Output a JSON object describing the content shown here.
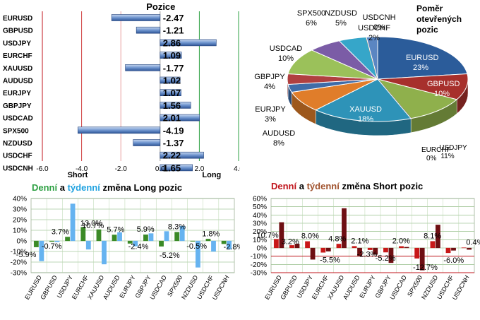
{
  "colors": {
    "green": "#2ea043",
    "blue": "#1fa2e0",
    "brown": "#a0522d",
    "red": "#c0141c",
    "bar_blue": "#4a78c0",
    "weekly_blue": "#66b3f0",
    "daily_green": "#3b8a26",
    "short_daily": "#c81818",
    "short_weekly": "#6e0f12"
  },
  "chart_data": [
    {
      "type": "bar",
      "orientation": "horizontal",
      "title": "Pozice",
      "categories": [
        "EURUSD",
        "GBPUSD",
        "USDJPY",
        "EURCHF",
        "XAUUSD",
        "AUDUSD",
        "EURJPY",
        "GBPJPY",
        "USDCAD",
        "SPX500",
        "NZDUSD",
        "USDCHF",
        "USDCNH"
      ],
      "values": [
        -2.47,
        -1.21,
        2.86,
        1.09,
        -1.77,
        1.02,
        1.07,
        1.56,
        2.01,
        -4.19,
        -1.37,
        2.22,
        1.65
      ],
      "value_labels": [
        "-2.47",
        "-1.21",
        "2.86",
        "1.09",
        "-1.77",
        "1.02",
        "1.07",
        "1.56",
        "2.01",
        "-4.19",
        "-1.37",
        "2.22",
        "1.65"
      ],
      "xlim": [
        -6.0,
        4.0
      ],
      "xticks": [
        "-6.0",
        "-4.0",
        "-2.0",
        "0.0",
        "2.0",
        "4.0"
      ],
      "xlabel_left": "Short",
      "xlabel_right": "Long",
      "grid": false
    },
    {
      "type": "pie",
      "title_lines": [
        "Poměr",
        "otevřených",
        "pozic"
      ],
      "slices": [
        {
          "label": "EURUSD",
          "value": 23,
          "text": "23%",
          "color": "#2b5c9a"
        },
        {
          "label": "GBPUSD",
          "value": 10,
          "text": "10%",
          "color": "#a7302c"
        },
        {
          "label": "USDJPY",
          "value": 11,
          "text": "11%",
          "color": "#8fb04c"
        },
        {
          "label": "EURCHF",
          "value": 0,
          "text": "0%",
          "color": "#6a4c93"
        },
        {
          "label": "XAUUSD",
          "value": 18,
          "text": "18%",
          "color": "#2e93b8"
        },
        {
          "label": "AUDUSD",
          "value": 8,
          "text": "8%",
          "color": "#e07d2a"
        },
        {
          "label": "EURJPY",
          "value": 3,
          "text": "3%",
          "color": "#3f6ca8"
        },
        {
          "label": "GBPJPY",
          "value": 4,
          "text": "4%",
          "color": "#b04040"
        },
        {
          "label": "USDCAD",
          "value": 10,
          "text": "10%",
          "color": "#9bc15a"
        },
        {
          "label": "SPX500",
          "value": 6,
          "text": "6%",
          "color": "#7b5ca6"
        },
        {
          "label": "NZDUSD",
          "value": 5,
          "text": "5%",
          "color": "#36a6c9"
        },
        {
          "label": "USDCNH",
          "value": 0,
          "text": "0%",
          "color": "#f08f3a"
        },
        {
          "label": "USDCHF",
          "value": 2,
          "text": "2%",
          "color": "#5b86c2"
        }
      ]
    },
    {
      "type": "bar",
      "title_parts": [
        "Denní",
        " a ",
        "týdenní",
        " změna Long pozic"
      ],
      "categories": [
        "EURUSD",
        "GBPUSD",
        "USDJPY",
        "EURCHF",
        "XAUUSD",
        "AUDUSD",
        "EURJPY",
        "GBPJPY",
        "USDCAD",
        "SPX500",
        "NZDUSD",
        "USDCHF",
        "USDCNH"
      ],
      "series": [
        {
          "name": "Denní",
          "values": [
            -5.9,
            -0.7,
            3.7,
            13.0,
            10.7,
            5.7,
            -2.4,
            5.9,
            -5.2,
            8.3,
            -0.5,
            1.8,
            -2.8
          ]
        },
        {
          "name": "Týdenní",
          "values": [
            -19,
            -1,
            35,
            -8,
            -22,
            8,
            -5,
            7,
            9,
            14,
            -25,
            -10,
            -8
          ]
        }
      ],
      "data_labels": [
        "-5.9%",
        "-0.7%",
        "3.7%",
        "13.0%",
        "10.7%",
        "5.7%",
        "-2.4%",
        "5.9%",
        "-5.2%",
        "8.3%",
        "-0.5%",
        "1.8%",
        "-2.8%"
      ],
      "ylim": [
        -30,
        40
      ],
      "yticks": [
        "40%",
        "30%",
        "20%",
        "10%",
        "0%",
        "-10%",
        "-20%",
        "-30%"
      ],
      "grid": true
    },
    {
      "type": "bar",
      "title_parts": [
        "Denní",
        " a ",
        "týdenní",
        " změna Short pozic"
      ],
      "categories": [
        "EURUSD",
        "GBPUSD",
        "USDJPY",
        "EURCHF",
        "XAUUSD",
        "AUDUSD",
        "EURJPY",
        "GBPJPY",
        "USDCAD",
        "SPX500",
        "NZDUSD",
        "USDCHF",
        "USDCNH"
      ],
      "series": [
        {
          "name": "Denní",
          "values": [
            10.7,
            3.2,
            8.0,
            -5.5,
            4.8,
            2.1,
            -2.3,
            -5.2,
            2.0,
            -12.7,
            8.1,
            -6.0,
            0.4
          ]
        },
        {
          "name": "Týdenní",
          "values": [
            31,
            5,
            -14,
            -4,
            48,
            -10,
            -8,
            -18,
            1,
            -27,
            28,
            -3,
            -2
          ]
        }
      ],
      "data_labels": [
        "10.7%",
        "3.2%",
        "8.0%",
        "-5.5%",
        "4.8%",
        "2.1%",
        "-2.3%",
        "-5.2%",
        "2.0%",
        "-12.7%",
        "8.1%",
        "-6.0%",
        "0.4%"
      ],
      "ylim": [
        -30,
        60
      ],
      "yticks": [
        "60%",
        "50%",
        "40%",
        "30%",
        "20%",
        "10%",
        "0%",
        "-10%",
        "-20%",
        "-30%"
      ],
      "grid": true
    }
  ]
}
